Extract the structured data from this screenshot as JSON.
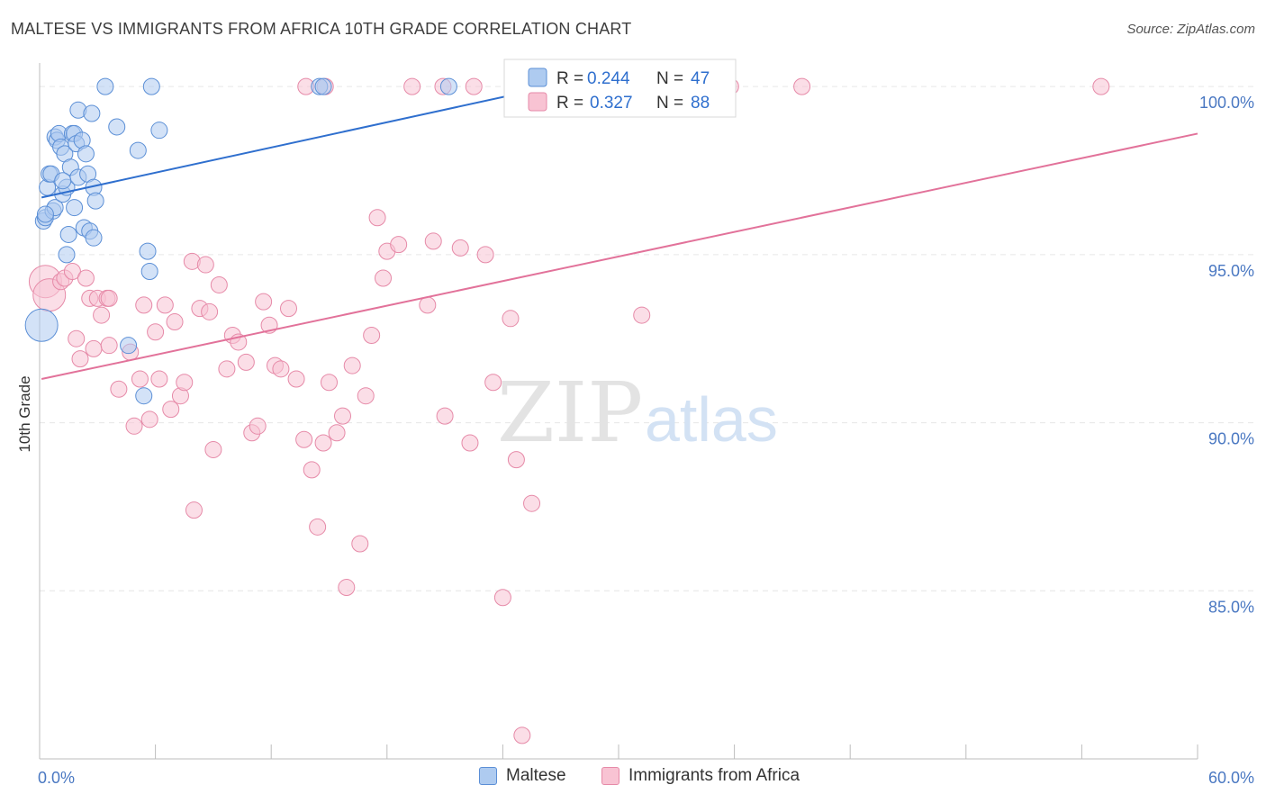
{
  "title": "MALTESE VS IMMIGRANTS FROM AFRICA 10TH GRADE CORRELATION CHART",
  "source": "Source: ZipAtlas.com",
  "watermark": {
    "zip": "ZIP",
    "atlas": "atlas"
  },
  "colors": {
    "blue_fill": "#aecbf0",
    "blue_stroke": "#5b8fd6",
    "blue_line": "#2f6fce",
    "pink_fill": "#f8c3d3",
    "pink_stroke": "#e68aa8",
    "pink_line": "#e2729a",
    "tick_text": "#4a78c2",
    "grid": "#e6e6e6"
  },
  "legend": {
    "rows": [
      {
        "r_label": "R =",
        "r_value": "0.244",
        "n_label": "N =",
        "n_value": "47",
        "series": "blue"
      },
      {
        "r_label": "R =",
        "r_value": "0.327",
        "n_label": "N =",
        "n_value": "88",
        "series": "pink"
      }
    ]
  },
  "bottom_legend": [
    "Maltese",
    "Immigrants from Africa"
  ],
  "chart_data": {
    "type": "scatter",
    "title": "MALTESE VS IMMIGRANTS FROM AFRICA 10TH GRADE CORRELATION CHART",
    "xlabel": "",
    "ylabel": "10th Grade",
    "xlim": [
      0,
      60
    ],
    "ylim": [
      80.0,
      100.7
    ],
    "x_tick_labels": [
      {
        "value": 0,
        "label": "0.0%"
      },
      {
        "value": 60,
        "label": "60.0%"
      }
    ],
    "y_tick_labels": [
      {
        "value": 100,
        "label": "100.0%"
      },
      {
        "value": 95,
        "label": "95.0%"
      },
      {
        "value": 90,
        "label": "90.0%"
      },
      {
        "value": 85,
        "label": "85.0%"
      }
    ],
    "x_minor_ticks": [
      6,
      12,
      18,
      24,
      30,
      36,
      42,
      48,
      54,
      60
    ],
    "series": [
      {
        "name": "Maltese",
        "color": "blue",
        "r": 0.244,
        "n": 47,
        "trend": {
          "x0": 0.1,
          "y0": 96.7,
          "x1": 26.5,
          "y1": 100.0
        },
        "points": [
          [
            0.2,
            96.0
          ],
          [
            0.3,
            96.1
          ],
          [
            0.4,
            97.0
          ],
          [
            0.5,
            97.4
          ],
          [
            0.6,
            97.4
          ],
          [
            0.7,
            96.3
          ],
          [
            0.8,
            96.4
          ],
          [
            0.8,
            98.5
          ],
          [
            0.9,
            98.4
          ],
          [
            1.0,
            98.6
          ],
          [
            1.1,
            98.2
          ],
          [
            1.2,
            96.8
          ],
          [
            1.3,
            98.0
          ],
          [
            1.4,
            97.0
          ],
          [
            1.4,
            95.0
          ],
          [
            1.5,
            95.6
          ],
          [
            1.6,
            97.6
          ],
          [
            1.7,
            98.6
          ],
          [
            1.8,
            98.6
          ],
          [
            1.8,
            96.4
          ],
          [
            1.9,
            98.3
          ],
          [
            2.0,
            97.3
          ],
          [
            2.0,
            99.3
          ],
          [
            2.2,
            98.4
          ],
          [
            2.3,
            95.8
          ],
          [
            2.4,
            98.0
          ],
          [
            2.5,
            97.4
          ],
          [
            2.6,
            95.7
          ],
          [
            2.7,
            99.2
          ],
          [
            2.8,
            95.5
          ],
          [
            2.8,
            97.0
          ],
          [
            2.9,
            96.6
          ],
          [
            3.4,
            100.0
          ],
          [
            4.0,
            98.8
          ],
          [
            4.6,
            92.3
          ],
          [
            5.1,
            98.1
          ],
          [
            5.4,
            90.8
          ],
          [
            5.6,
            95.1
          ],
          [
            5.7,
            94.5
          ],
          [
            5.8,
            100.0
          ],
          [
            6.2,
            98.7
          ],
          [
            14.5,
            100.0
          ],
          [
            14.7,
            100.0
          ],
          [
            21.2,
            100.0
          ],
          [
            0.1,
            92.9
          ],
          [
            0.3,
            96.2
          ],
          [
            1.2,
            97.2
          ]
        ]
      },
      {
        "name": "Immigrants from Africa",
        "color": "pink",
        "r": 0.327,
        "n": 88,
        "trend": {
          "x0": 0.1,
          "y0": 91.3,
          "x1": 60.0,
          "y1": 98.6
        },
        "points": [
          [
            0.3,
            94.2
          ],
          [
            0.5,
            93.8
          ],
          [
            1.1,
            94.2
          ],
          [
            1.3,
            94.3
          ],
          [
            1.7,
            94.5
          ],
          [
            1.9,
            92.5
          ],
          [
            2.1,
            91.9
          ],
          [
            2.4,
            94.3
          ],
          [
            2.6,
            93.7
          ],
          [
            2.8,
            92.2
          ],
          [
            3.0,
            93.7
          ],
          [
            3.2,
            93.2
          ],
          [
            3.5,
            93.7
          ],
          [
            3.6,
            92.3
          ],
          [
            4.1,
            91.0
          ],
          [
            4.7,
            92.1
          ],
          [
            4.9,
            89.9
          ],
          [
            5.2,
            91.3
          ],
          [
            5.4,
            93.5
          ],
          [
            5.7,
            90.1
          ],
          [
            6.0,
            92.7
          ],
          [
            6.2,
            91.3
          ],
          [
            6.5,
            93.5
          ],
          [
            6.8,
            90.4
          ],
          [
            7.0,
            93.0
          ],
          [
            7.3,
            90.8
          ],
          [
            7.5,
            91.2
          ],
          [
            7.9,
            94.8
          ],
          [
            8.0,
            87.4
          ],
          [
            8.3,
            93.4
          ],
          [
            8.6,
            94.7
          ],
          [
            8.8,
            93.3
          ],
          [
            9.0,
            89.2
          ],
          [
            9.3,
            94.1
          ],
          [
            9.7,
            91.6
          ],
          [
            10.0,
            92.6
          ],
          [
            10.3,
            92.4
          ],
          [
            10.7,
            91.8
          ],
          [
            11.0,
            89.7
          ],
          [
            11.3,
            89.9
          ],
          [
            11.6,
            93.6
          ],
          [
            11.9,
            92.9
          ],
          [
            12.2,
            91.7
          ],
          [
            12.5,
            91.6
          ],
          [
            12.9,
            93.4
          ],
          [
            13.3,
            91.3
          ],
          [
            13.7,
            89.5
          ],
          [
            14.1,
            88.6
          ],
          [
            14.4,
            86.9
          ],
          [
            14.7,
            89.4
          ],
          [
            15.0,
            91.2
          ],
          [
            15.4,
            89.7
          ],
          [
            15.7,
            90.2
          ],
          [
            15.9,
            85.1
          ],
          [
            16.2,
            91.7
          ],
          [
            16.6,
            86.4
          ],
          [
            16.9,
            90.8
          ],
          [
            17.2,
            92.6
          ],
          [
            17.5,
            96.1
          ],
          [
            17.8,
            94.3
          ],
          [
            18.0,
            95.1
          ],
          [
            18.6,
            95.3
          ],
          [
            19.3,
            100.0
          ],
          [
            20.1,
            93.5
          ],
          [
            20.4,
            95.4
          ],
          [
            20.9,
            100.0
          ],
          [
            21.0,
            90.2
          ],
          [
            21.8,
            95.2
          ],
          [
            22.3,
            89.4
          ],
          [
            22.5,
            100.0
          ],
          [
            23.1,
            95.0
          ],
          [
            23.5,
            91.2
          ],
          [
            24.0,
            84.8
          ],
          [
            24.4,
            93.1
          ],
          [
            24.7,
            88.9
          ],
          [
            25.0,
            80.7
          ],
          [
            25.5,
            87.6
          ],
          [
            31.2,
            93.2
          ],
          [
            31.5,
            100.0
          ],
          [
            33.1,
            100.0
          ],
          [
            35.8,
            100.0
          ],
          [
            39.5,
            100.0
          ],
          [
            55.0,
            100.0
          ],
          [
            14.8,
            100.0
          ],
          [
            26.7,
            100.0
          ],
          [
            29.0,
            100.0
          ],
          [
            13.8,
            100.0
          ],
          [
            3.6,
            93.7
          ]
        ]
      }
    ]
  }
}
